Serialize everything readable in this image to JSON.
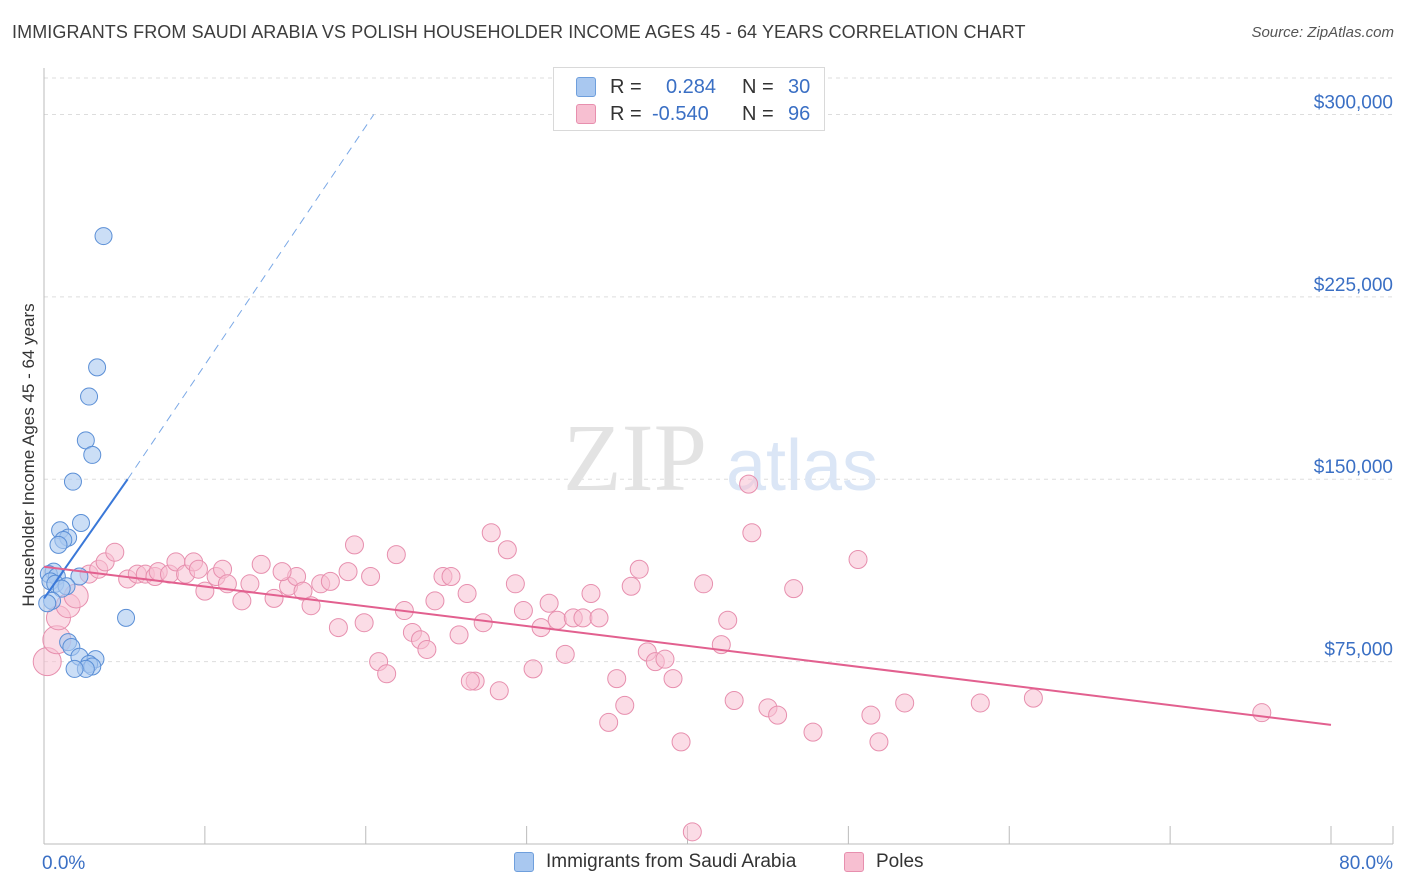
{
  "title": "IMMIGRANTS FROM SAUDI ARABIA VS POLISH HOUSEHOLDER INCOME AGES 45 - 64 YEARS CORRELATION CHART",
  "source": "Source: ZipAtlas.com",
  "watermark": {
    "zip": "ZIP",
    "atlas": "atlas"
  },
  "legend": {
    "rows": [
      {
        "r_label": "R =",
        "r_value": "0.284",
        "n_label": "N =",
        "n_value": "30",
        "color": "#a9c8f0",
        "border": "#6f9fdc"
      },
      {
        "r_label": "R =",
        "r_value": "-0.540",
        "n_label": "N =",
        "n_value": "96",
        "color": "#f7bfd1",
        "border": "#e78fae"
      }
    ]
  },
  "bottom_legend": [
    {
      "label": "Immigrants from Saudi Arabia",
      "color": "#a9c8f0",
      "border": "#6f9fdc"
    },
    {
      "label": "Poles",
      "color": "#f7bfd1",
      "border": "#e78fae"
    }
  ],
  "chart_data": {
    "type": "scatter",
    "title": "IMMIGRANTS FROM SAUDI ARABIA VS POLISH HOUSEHOLDER INCOME AGES 45 - 64 YEARS CORRELATION CHART",
    "xlabel": "",
    "ylabel": "Householder Income Ages 45 - 64 years",
    "xlim": [
      0,
      80
    ],
    "ylim": [
      0,
      315000
    ],
    "x_tick_labels": {
      "min": "0.0%",
      "max": "80.0%"
    },
    "y_ticks": [
      {
        "value": 75000,
        "label": "$75,000"
      },
      {
        "value": 150000,
        "label": "$150,000"
      },
      {
        "value": 225000,
        "label": "$225,000"
      },
      {
        "value": 300000,
        "label": "$300,000"
      }
    ],
    "series": [
      {
        "name": "Immigrants from Saudi Arabia",
        "color": "#7aa8e6",
        "line_color": "#3a78d8",
        "trend": {
          "x0": 0.0,
          "y0": 101000,
          "x1": 5.2,
          "y1": 150000,
          "dash_x1": 20.5,
          "dash_y1": 300000
        },
        "points": [
          [
            3.7,
            250000
          ],
          [
            3.3,
            196000
          ],
          [
            2.8,
            184000
          ],
          [
            2.6,
            166000
          ],
          [
            3.0,
            160000
          ],
          [
            1.8,
            149000
          ],
          [
            2.3,
            132000
          ],
          [
            1.0,
            129000
          ],
          [
            1.5,
            126000
          ],
          [
            1.2,
            125000
          ],
          [
            0.9,
            123000
          ],
          [
            0.6,
            112000
          ],
          [
            0.3,
            111000
          ],
          [
            0.8,
            110000
          ],
          [
            2.2,
            110000
          ],
          [
            0.4,
            108000
          ],
          [
            0.7,
            107000
          ],
          [
            1.4,
            106000
          ],
          [
            1.1,
            105000
          ],
          [
            0.5,
            100000
          ],
          [
            0.2,
            99000
          ],
          [
            5.1,
            93000
          ],
          [
            1.5,
            83000
          ],
          [
            1.7,
            81000
          ],
          [
            2.2,
            77000
          ],
          [
            3.2,
            76000
          ],
          [
            2.8,
            74000
          ],
          [
            3.0,
            73000
          ],
          [
            2.6,
            72000
          ],
          [
            1.9,
            72000
          ]
        ]
      },
      {
        "name": "Poles",
        "color": "#f2a9c2",
        "line_color": "#e2608f",
        "trend": {
          "x0": 0.0,
          "y0": 114000,
          "x1": 80.0,
          "y1": 49000
        },
        "points": [
          [
            0.2,
            75000
          ],
          [
            0.8,
            84000
          ],
          [
            0.9,
            93000
          ],
          [
            1.5,
            98000
          ],
          [
            2.0,
            102000
          ],
          [
            2.8,
            111000
          ],
          [
            3.4,
            113000
          ],
          [
            3.8,
            116000
          ],
          [
            4.4,
            120000
          ],
          [
            5.2,
            109000
          ],
          [
            5.8,
            111000
          ],
          [
            6.3,
            111000
          ],
          [
            6.9,
            110000
          ],
          [
            7.1,
            112000
          ],
          [
            7.8,
            111000
          ],
          [
            8.2,
            116000
          ],
          [
            8.8,
            111000
          ],
          [
            9.3,
            116000
          ],
          [
            9.6,
            113000
          ],
          [
            10.0,
            104000
          ],
          [
            10.7,
            110000
          ],
          [
            11.1,
            113000
          ],
          [
            11.4,
            107000
          ],
          [
            12.3,
            100000
          ],
          [
            12.8,
            107000
          ],
          [
            13.5,
            115000
          ],
          [
            14.3,
            101000
          ],
          [
            15.2,
            106000
          ],
          [
            15.7,
            110000
          ],
          [
            16.1,
            104000
          ],
          [
            16.6,
            98000
          ],
          [
            17.2,
            107000
          ],
          [
            17.8,
            108000
          ],
          [
            18.3,
            89000
          ],
          [
            18.9,
            112000
          ],
          [
            19.3,
            123000
          ],
          [
            19.9,
            91000
          ],
          [
            20.3,
            110000
          ],
          [
            20.8,
            75000
          ],
          [
            21.3,
            70000
          ],
          [
            21.9,
            119000
          ],
          [
            22.4,
            96000
          ],
          [
            22.9,
            87000
          ],
          [
            23.4,
            84000
          ],
          [
            23.8,
            80000
          ],
          [
            24.3,
            100000
          ],
          [
            24.8,
            110000
          ],
          [
            25.3,
            110000
          ],
          [
            25.8,
            86000
          ],
          [
            26.3,
            103000
          ],
          [
            26.8,
            67000
          ],
          [
            27.3,
            91000
          ],
          [
            27.8,
            128000
          ],
          [
            28.3,
            63000
          ],
          [
            28.8,
            121000
          ],
          [
            29.3,
            107000
          ],
          [
            29.8,
            96000
          ],
          [
            30.4,
            72000
          ],
          [
            30.9,
            89000
          ],
          [
            31.4,
            99000
          ],
          [
            31.9,
            92000
          ],
          [
            32.4,
            78000
          ],
          [
            32.9,
            93000
          ],
          [
            33.5,
            93000
          ],
          [
            34.0,
            103000
          ],
          [
            34.5,
            93000
          ],
          [
            35.1,
            50000
          ],
          [
            35.6,
            68000
          ],
          [
            36.1,
            57000
          ],
          [
            36.5,
            106000
          ],
          [
            37.0,
            113000
          ],
          [
            37.5,
            79000
          ],
          [
            38.0,
            75000
          ],
          [
            38.6,
            76000
          ],
          [
            39.1,
            68000
          ],
          [
            39.6,
            42000
          ],
          [
            40.3,
            5000
          ],
          [
            41.0,
            107000
          ],
          [
            42.1,
            82000
          ],
          [
            42.5,
            92000
          ],
          [
            42.9,
            59000
          ],
          [
            43.8,
            148000
          ],
          [
            44.0,
            128000
          ],
          [
            45.0,
            56000
          ],
          [
            45.6,
            53000
          ],
          [
            46.6,
            105000
          ],
          [
            47.8,
            46000
          ],
          [
            50.6,
            117000
          ],
          [
            51.4,
            53000
          ],
          [
            51.9,
            42000
          ],
          [
            53.5,
            58000
          ],
          [
            58.2,
            58000
          ],
          [
            61.5,
            60000
          ],
          [
            75.7,
            54000
          ],
          [
            26.5,
            67000
          ],
          [
            14.8,
            112000
          ]
        ]
      }
    ]
  }
}
